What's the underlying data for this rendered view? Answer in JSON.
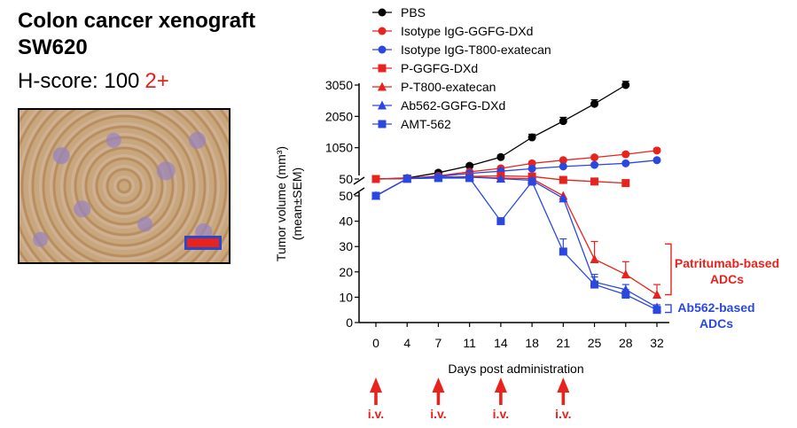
{
  "header": {
    "title_line1": "Colon cancer xenograft",
    "title_line2": "SW620",
    "hscore_label": "H-score: 100",
    "hscore_grade": "2+"
  },
  "colors": {
    "black": "#000000",
    "red": "#e8221c",
    "blue": "#2a48e0"
  },
  "chart_data": {
    "type": "line",
    "xlabel": "Days post administration",
    "ylabel_line1": "Tumor volume (mm³)",
    "ylabel_line2": "(mean±SEM)",
    "x": [
      0,
      4,
      7,
      11,
      14,
      18,
      21,
      25,
      28,
      32
    ],
    "x_tick_labels": [
      "0",
      "4",
      "7",
      "11",
      "14",
      "18",
      "21",
      "25",
      "28",
      "32"
    ],
    "y_upper_ticks": [
      50,
      1050,
      2050,
      3050
    ],
    "y_upper_tick_labels": [
      "50",
      "1050",
      "2050",
      "3050"
    ],
    "y_lower_ticks": [
      0,
      10,
      20,
      30,
      40,
      50
    ],
    "y_lower_tick_labels": [
      "0",
      "10",
      "20",
      "30",
      "40",
      "50"
    ],
    "y_break": "broken axis: 0-50 linear lower panel, 50-3050 upper panel",
    "dosing_days": [
      0,
      7,
      14,
      21
    ],
    "dosing_label": "i.v.",
    "legend_position": "top",
    "series": [
      {
        "name": "PBS",
        "color": "#000000",
        "marker": "circle",
        "panel": "upper",
        "x": [
          0,
          4,
          7,
          11,
          14,
          18,
          21,
          25,
          28
        ],
        "y": [
          50,
          80,
          250,
          470,
          750,
          1380,
          1900,
          2450,
          3050
        ],
        "err": [
          20,
          20,
          60,
          60,
          60,
          100,
          120,
          130,
          120
        ]
      },
      {
        "name": "Isotype IgG-GGFG-DXd",
        "color": "#e8221c",
        "marker": "circle",
        "panel": "upper",
        "x": [
          0,
          4,
          7,
          11,
          14,
          18,
          21,
          25,
          28,
          32
        ],
        "y": [
          50,
          70,
          150,
          280,
          390,
          550,
          650,
          740,
          840,
          960
        ],
        "err": [
          20,
          20,
          30,
          40,
          40,
          50,
          50,
          50,
          50,
          60
        ]
      },
      {
        "name": "Isotype IgG-T800-exatecan",
        "color": "#2a48e0",
        "marker": "circle",
        "panel": "upper",
        "x": [
          0,
          4,
          7,
          11,
          14,
          18,
          21,
          25,
          28,
          32
        ],
        "y": [
          50,
          60,
          130,
          230,
          300,
          380,
          450,
          500,
          550,
          650
        ],
        "err": [
          20,
          20,
          30,
          30,
          40,
          40,
          40,
          40,
          40,
          50
        ]
      },
      {
        "name": "P-GGFG-DXd",
        "color": "#e8221c",
        "marker": "square",
        "panel": "upper",
        "x": [
          0,
          4,
          7,
          11,
          14,
          18,
          21,
          25,
          28
        ],
        "y": [
          50,
          60,
          100,
          130,
          150,
          130,
          20,
          -30,
          -80
        ],
        "err": [
          15,
          15,
          20,
          20,
          20,
          20,
          20,
          20,
          20
        ]
      },
      {
        "name": "P-T800-exatecan",
        "color": "#e8221c",
        "marker": "triangle",
        "panel": "mixed",
        "x": [
          0,
          4,
          7,
          11,
          14,
          18,
          21,
          25,
          28,
          32
        ],
        "y": [
          50,
          60,
          110,
          110,
          80,
          60,
          50,
          25,
          19,
          11
        ],
        "err": [
          0,
          0,
          0,
          0,
          0,
          0,
          0,
          7,
          5,
          4
        ]
      },
      {
        "name": "Ab562-GGFG-DXd",
        "color": "#2a48e0",
        "marker": "triangle",
        "panel": "mixed",
        "x": [
          0,
          4,
          7,
          11,
          14,
          18,
          21,
          25,
          28,
          32
        ],
        "y": [
          50,
          60,
          110,
          110,
          60,
          -10,
          49,
          16,
          13,
          6
        ],
        "err": [
          0,
          0,
          0,
          0,
          0,
          0,
          0,
          3,
          2,
          1
        ]
      },
      {
        "name": "AMT-562",
        "color": "#2a48e0",
        "marker": "square",
        "panel": "mixed",
        "x": [
          0,
          4,
          7,
          11,
          14,
          18,
          21,
          25,
          28,
          32
        ],
        "y": [
          50,
          60,
          80,
          80,
          40,
          -20,
          28,
          15,
          11,
          5
        ],
        "err": [
          0,
          0,
          0,
          0,
          0,
          0,
          5,
          3,
          2,
          1
        ]
      }
    ],
    "annotations": [
      {
        "text_line1": "Patritumab-based",
        "text_line2": "ADCs",
        "color": "#e8221c"
      },
      {
        "text_line1": "Ab562-based",
        "text_line2": "ADCs",
        "color": "#2a48e0"
      }
    ]
  }
}
